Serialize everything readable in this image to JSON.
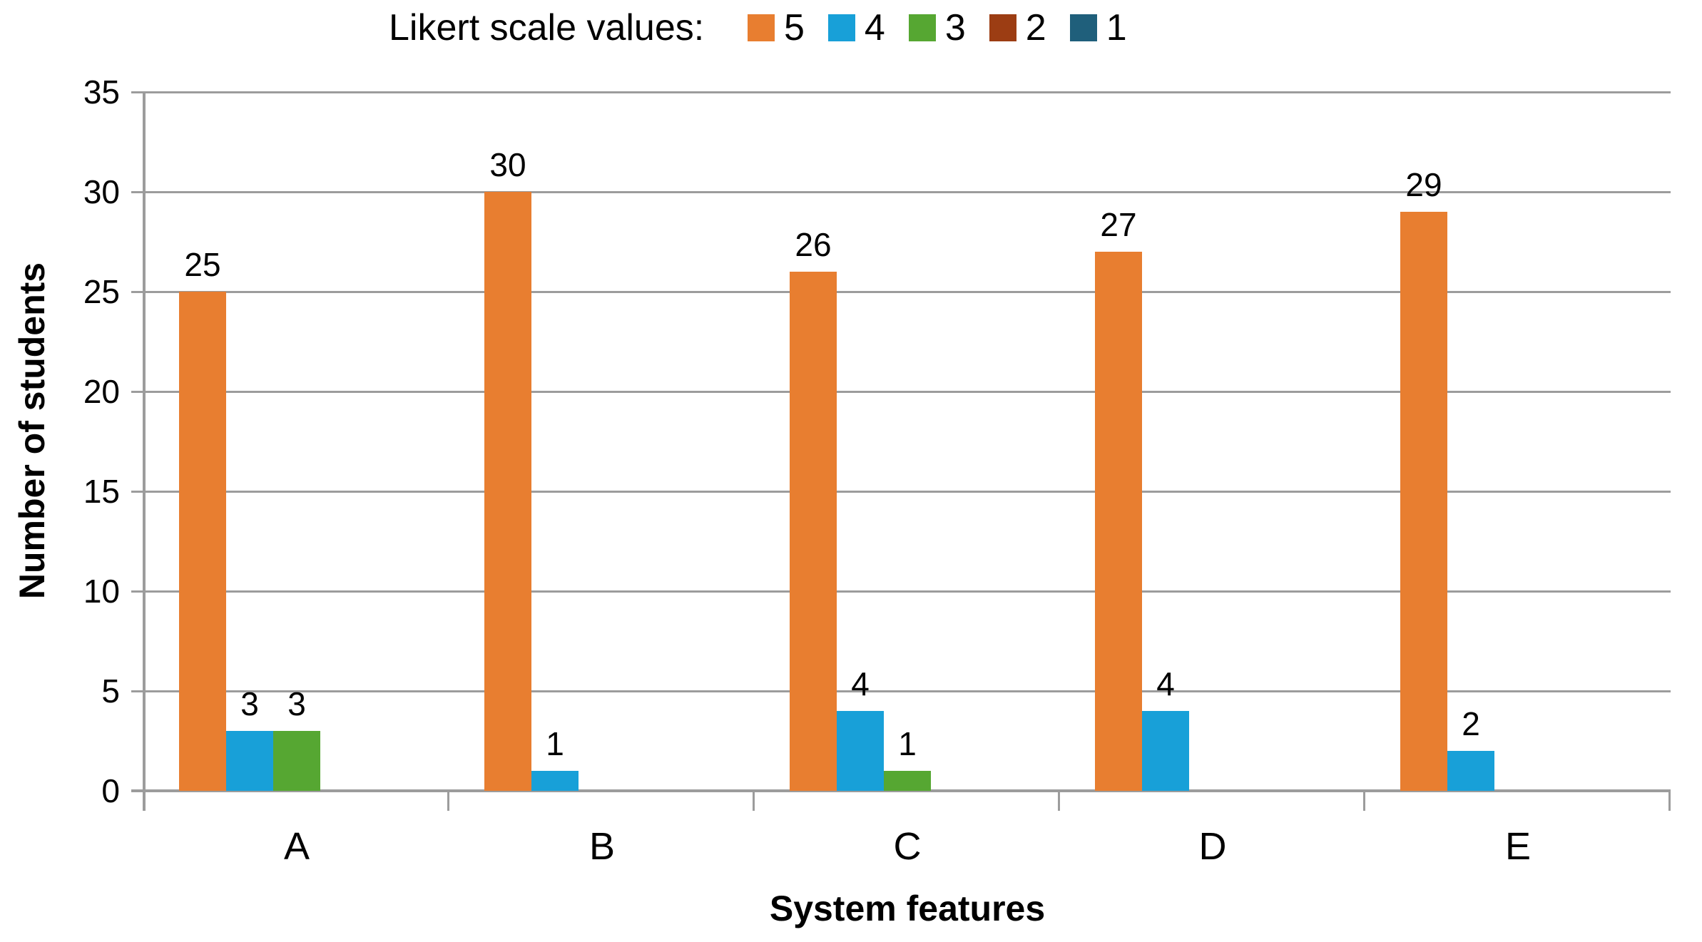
{
  "chart_data": {
    "type": "bar",
    "legend_title": "Likert scale values:",
    "legend_position": "top",
    "categories": [
      "A",
      "B",
      "C",
      "D",
      "E"
    ],
    "series": [
      {
        "name": "5",
        "color": "#E87E30",
        "values": [
          25,
          30,
          26,
          27,
          29
        ]
      },
      {
        "name": "4",
        "color": "#18A0D8",
        "values": [
          3,
          1,
          4,
          4,
          2
        ]
      },
      {
        "name": "3",
        "color": "#56A732",
        "values": [
          3,
          0,
          1,
          0,
          0
        ]
      },
      {
        "name": "2",
        "color": "#9C3D13",
        "values": [
          0,
          0,
          0,
          0,
          0
        ]
      },
      {
        "name": "1",
        "color": "#1F5F7B",
        "values": [
          0,
          0,
          0,
          0,
          0
        ]
      }
    ],
    "xlabel": "System features",
    "ylabel": "Number of students",
    "ylim": [
      0,
      35
    ],
    "yticks": [
      0,
      5,
      10,
      15,
      20,
      25,
      30,
      35
    ],
    "grid": true,
    "data_labels": true,
    "gridline_color": "#9C9C9C",
    "axis_color": "#9C9C9C",
    "text_color": "#000000",
    "background": "#FFFFFF"
  }
}
